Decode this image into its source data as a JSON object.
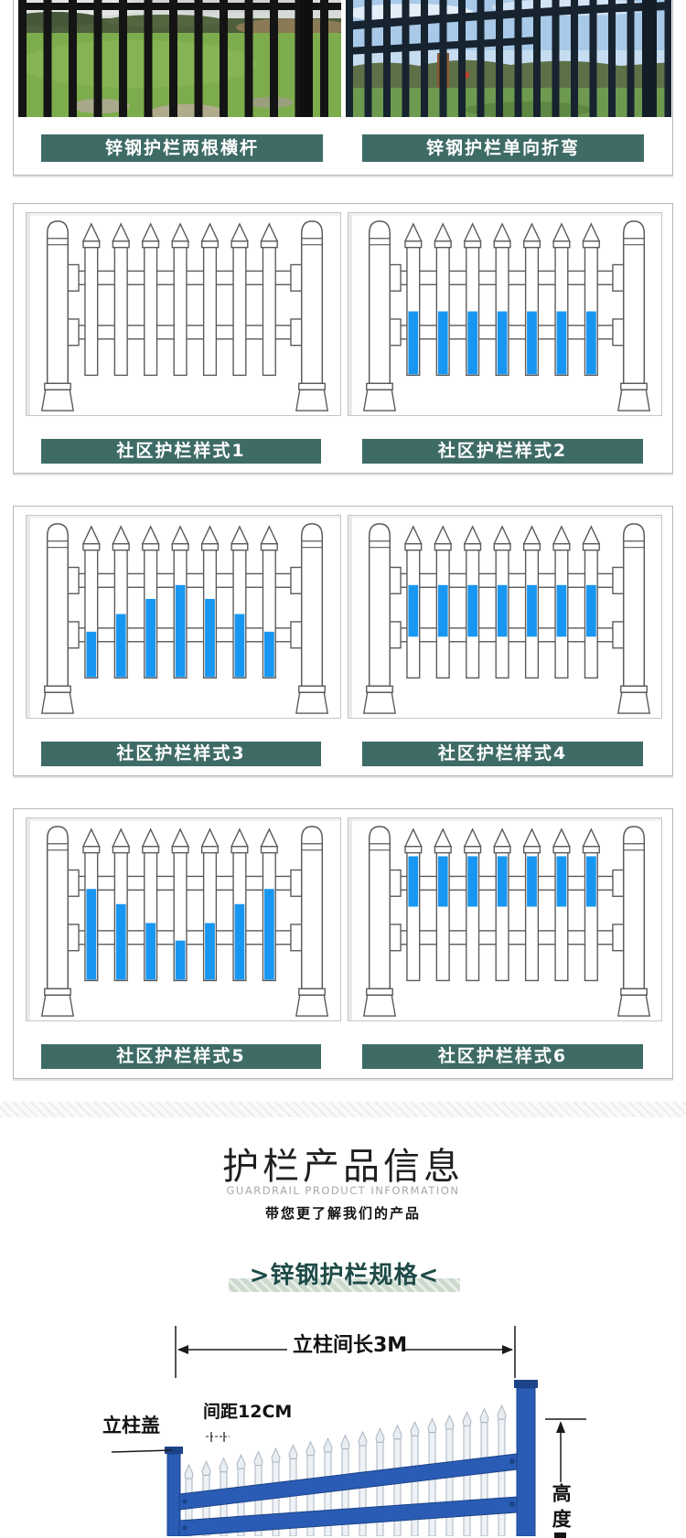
{
  "colors": {
    "teal": "#3E6B66",
    "picket_blue": "#1897F2",
    "fence_blue": "#2a5cb5",
    "fence_blue_dark": "#1c4388",
    "banner_band": "#ccd9cd",
    "banner_text": "#1d4a47"
  },
  "top_panel": {
    "photos": [
      "zinc-fence-two-rails-photo",
      "zinc-fence-single-bend-photo"
    ],
    "labels": [
      "锌钢护栏两根横杆",
      "锌钢护栏单向折弯"
    ]
  },
  "style_panels": [
    {
      "left": {
        "label": "社区护栏样式1",
        "fills": []
      },
      "right": {
        "label": "社区护栏样式2",
        "fills": [
          [
            0.5,
            1
          ],
          [
            0.5,
            1
          ],
          [
            0.5,
            1
          ],
          [
            0.5,
            1
          ],
          [
            0.5,
            1
          ],
          [
            0.5,
            1
          ],
          [
            0.5,
            1
          ]
        ]
      }
    },
    {
      "left": {
        "label": "社区护栏样式3",
        "fills": [
          [
            0.64,
            1
          ],
          [
            0.5,
            1
          ],
          [
            0.38,
            1
          ],
          [
            0.27,
            1
          ],
          [
            0.38,
            1
          ],
          [
            0.5,
            1
          ],
          [
            0.64,
            1
          ]
        ]
      },
      "right": {
        "label": "社区护栏样式4",
        "fills": [
          [
            0.27,
            0.68
          ],
          [
            0.27,
            0.68
          ],
          [
            0.27,
            0.68
          ],
          [
            0.27,
            0.68
          ],
          [
            0.27,
            0.68
          ],
          [
            0.27,
            0.68
          ],
          [
            0.27,
            0.68
          ]
        ]
      }
    },
    {
      "left": {
        "label": "社区护栏样式5",
        "fills": [
          [
            0.28,
            1
          ],
          [
            0.4,
            1
          ],
          [
            0.55,
            1
          ],
          [
            0.69,
            1
          ],
          [
            0.55,
            1
          ],
          [
            0.4,
            1
          ],
          [
            0.28,
            1
          ]
        ]
      },
      "right": {
        "label": "社区护栏样式6",
        "fills": [
          [
            0.02,
            0.42
          ],
          [
            0.02,
            0.42
          ],
          [
            0.02,
            0.42
          ],
          [
            0.02,
            0.42
          ],
          [
            0.02,
            0.42
          ],
          [
            0.02,
            0.42
          ],
          [
            0.02,
            0.42
          ]
        ]
      }
    }
  ],
  "info_header": {
    "title": "护栏产品信息",
    "subtitle": "GUARDRAIL PRODUCT INFORMATION",
    "tagline": "带您更了解我们的产品"
  },
  "spec_banner": {
    "text": ">锌钢护栏规格<"
  },
  "spec_diagram": {
    "span_label": "立柱间长3M",
    "gap_label": "间距12CM",
    "cap_label": "立柱盖",
    "height_label": "高度"
  }
}
